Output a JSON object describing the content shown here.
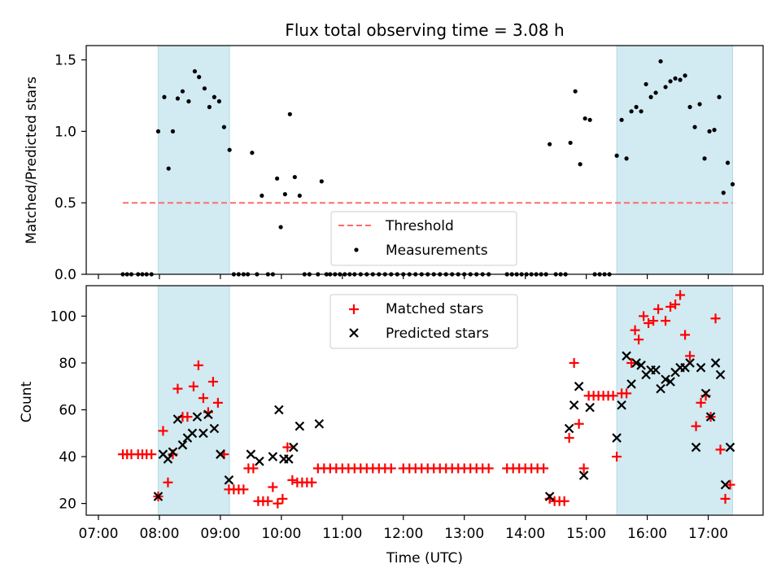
{
  "title": "Flux total observing time = 3.08 h",
  "colors": {
    "band": "#add8e6",
    "threshold": "#ff6b6b",
    "matched": "#ff0000",
    "predicted": "#000000",
    "measurement": "#000000"
  },
  "x_axis": {
    "label": "Time (UTC)",
    "range_h": [
      6.8,
      17.9
    ],
    "ticks": [
      7,
      8,
      9,
      10,
      11,
      12,
      13,
      14,
      15,
      16,
      17
    ],
    "tick_labels": [
      "07:00",
      "08:00",
      "09:00",
      "10:00",
      "11:00",
      "12:00",
      "13:00",
      "14:00",
      "15:00",
      "16:00",
      "17:00"
    ]
  },
  "observing_windows_h": [
    [
      7.98,
      9.15
    ],
    [
      15.5,
      17.4
    ]
  ],
  "top_panel": {
    "ylabel": "Matched/Predicted stars",
    "ylim": [
      0,
      1.6
    ],
    "yticks": [
      0.0,
      0.5,
      1.0,
      1.5
    ],
    "ytick_labels": [
      "0.0",
      "0.5",
      "1.0",
      "1.5"
    ],
    "threshold": {
      "value": 0.5,
      "x_range_h": [
        7.4,
        17.4
      ]
    },
    "legend": {
      "threshold": "Threshold",
      "measurements": "Measurements"
    }
  },
  "bottom_panel": {
    "ylabel": "Count",
    "ylim": [
      15,
      113
    ],
    "yticks": [
      20,
      40,
      60,
      80,
      100
    ],
    "ytick_labels": [
      "20",
      "40",
      "60",
      "80",
      "100"
    ],
    "legend": {
      "matched": "Matched stars",
      "predicted": "Predicted stars"
    }
  },
  "chart_data": {
    "type": "scatter",
    "ratio_series": {
      "name": "Measurements",
      "points": [
        [
          7.4,
          0
        ],
        [
          7.47,
          0
        ],
        [
          7.54,
          0
        ],
        [
          7.65,
          0
        ],
        [
          7.72,
          0
        ],
        [
          7.79,
          0
        ],
        [
          7.87,
          0
        ],
        [
          7.98,
          1.0
        ],
        [
          8.08,
          1.24
        ],
        [
          8.15,
          0.74
        ],
        [
          8.22,
          1.0
        ],
        [
          8.3,
          1.23
        ],
        [
          8.38,
          1.28
        ],
        [
          8.48,
          1.21
        ],
        [
          8.58,
          1.42
        ],
        [
          8.65,
          1.38
        ],
        [
          8.74,
          1.3
        ],
        [
          8.82,
          1.17
        ],
        [
          8.9,
          1.24
        ],
        [
          8.98,
          1.21
        ],
        [
          9.06,
          1.03
        ],
        [
          9.15,
          0.87
        ],
        [
          9.22,
          0
        ],
        [
          9.3,
          0
        ],
        [
          9.38,
          0
        ],
        [
          9.45,
          0
        ],
        [
          9.52,
          0.85
        ],
        [
          9.6,
          0
        ],
        [
          9.68,
          0.55
        ],
        [
          9.78,
          0
        ],
        [
          9.86,
          0
        ],
        [
          9.93,
          0.67
        ],
        [
          9.99,
          0.33
        ],
        [
          10.06,
          0.56
        ],
        [
          10.14,
          1.12
        ],
        [
          10.22,
          0.68
        ],
        [
          10.3,
          0.55
        ],
        [
          10.38,
          0
        ],
        [
          10.46,
          0
        ],
        [
          10.6,
          0
        ],
        [
          10.66,
          0.65
        ],
        [
          10.74,
          0
        ],
        [
          10.8,
          0
        ],
        [
          10.88,
          0
        ],
        [
          10.96,
          0
        ],
        [
          11.04,
          0
        ],
        [
          11.12,
          0
        ],
        [
          11.2,
          0
        ],
        [
          11.3,
          0
        ],
        [
          11.4,
          0
        ],
        [
          11.5,
          0
        ],
        [
          11.6,
          0
        ],
        [
          11.7,
          0
        ],
        [
          11.8,
          0
        ],
        [
          11.9,
          0
        ],
        [
          12.0,
          0
        ],
        [
          12.1,
          0
        ],
        [
          12.2,
          0
        ],
        [
          12.3,
          0
        ],
        [
          12.4,
          0
        ],
        [
          12.5,
          0
        ],
        [
          12.6,
          0
        ],
        [
          12.7,
          0
        ],
        [
          12.8,
          0
        ],
        [
          12.9,
          0
        ],
        [
          13.0,
          0
        ],
        [
          13.1,
          0
        ],
        [
          13.2,
          0
        ],
        [
          13.3,
          0
        ],
        [
          13.4,
          0
        ],
        [
          13.7,
          0
        ],
        [
          13.78,
          0
        ],
        [
          13.86,
          0
        ],
        [
          13.94,
          0
        ],
        [
          14.02,
          0
        ],
        [
          14.1,
          0
        ],
        [
          14.18,
          0
        ],
        [
          14.26,
          0
        ],
        [
          14.34,
          0
        ],
        [
          14.4,
          0.91
        ],
        [
          14.5,
          0
        ],
        [
          14.58,
          0
        ],
        [
          14.66,
          0
        ],
        [
          14.74,
          0.92
        ],
        [
          14.82,
          1.28
        ],
        [
          14.9,
          0.77
        ],
        [
          14.98,
          1.09
        ],
        [
          15.06,
          1.08
        ],
        [
          15.14,
          0
        ],
        [
          15.22,
          0
        ],
        [
          15.3,
          0
        ],
        [
          15.38,
          0
        ],
        [
          15.5,
          0.83
        ],
        [
          15.58,
          1.08
        ],
        [
          15.66,
          0.81
        ],
        [
          15.74,
          1.14
        ],
        [
          15.82,
          1.17
        ],
        [
          15.9,
          1.14
        ],
        [
          15.98,
          1.33
        ],
        [
          16.06,
          1.24
        ],
        [
          16.14,
          1.27
        ],
        [
          16.22,
          1.49
        ],
        [
          16.3,
          1.31
        ],
        [
          16.38,
          1.35
        ],
        [
          16.46,
          1.37
        ],
        [
          16.54,
          1.36
        ],
        [
          16.62,
          1.39
        ],
        [
          16.7,
          1.17
        ],
        [
          16.78,
          1.03
        ],
        [
          16.86,
          1.19
        ],
        [
          16.94,
          0.81
        ],
        [
          17.02,
          1.0
        ],
        [
          17.1,
          1.01
        ],
        [
          17.18,
          1.24
        ],
        [
          17.25,
          0.57
        ],
        [
          17.32,
          0.78
        ],
        [
          17.4,
          0.63
        ]
      ]
    },
    "matched_series": {
      "name": "Matched stars",
      "points": [
        [
          7.4,
          41
        ],
        [
          7.47,
          41
        ],
        [
          7.54,
          41
        ],
        [
          7.65,
          41
        ],
        [
          7.72,
          41
        ],
        [
          7.79,
          41
        ],
        [
          7.87,
          41
        ],
        [
          7.98,
          23
        ],
        [
          8.06,
          51
        ],
        [
          8.14,
          29
        ],
        [
          8.22,
          41
        ],
        [
          8.3,
          69
        ],
        [
          8.38,
          57
        ],
        [
          8.46,
          57
        ],
        [
          8.56,
          70
        ],
        [
          8.64,
          79
        ],
        [
          8.72,
          65
        ],
        [
          8.8,
          59
        ],
        [
          8.88,
          72
        ],
        [
          8.96,
          63
        ],
        [
          9.06,
          41
        ],
        [
          9.14,
          26
        ],
        [
          9.22,
          26
        ],
        [
          9.3,
          26
        ],
        [
          9.38,
          26
        ],
        [
          9.46,
          35
        ],
        [
          9.54,
          35
        ],
        [
          9.62,
          21
        ],
        [
          9.7,
          21
        ],
        [
          9.78,
          21
        ],
        [
          9.86,
          27
        ],
        [
          9.94,
          20
        ],
        [
          10.02,
          22
        ],
        [
          10.1,
          44
        ],
        [
          10.18,
          30
        ],
        [
          10.26,
          29
        ],
        [
          10.34,
          29
        ],
        [
          10.42,
          29
        ],
        [
          10.5,
          29
        ],
        [
          10.6,
          35
        ],
        [
          10.7,
          35
        ],
        [
          10.8,
          35
        ],
        [
          10.9,
          35
        ],
        [
          11.0,
          35
        ],
        [
          11.1,
          35
        ],
        [
          11.2,
          35
        ],
        [
          11.3,
          35
        ],
        [
          11.4,
          35
        ],
        [
          11.5,
          35
        ],
        [
          11.6,
          35
        ],
        [
          11.7,
          35
        ],
        [
          11.8,
          35
        ],
        [
          12.0,
          35
        ],
        [
          12.1,
          35
        ],
        [
          12.2,
          35
        ],
        [
          12.3,
          35
        ],
        [
          12.4,
          35
        ],
        [
          12.5,
          35
        ],
        [
          12.6,
          35
        ],
        [
          12.7,
          35
        ],
        [
          12.8,
          35
        ],
        [
          12.9,
          35
        ],
        [
          13.0,
          35
        ],
        [
          13.1,
          35
        ],
        [
          13.2,
          35
        ],
        [
          13.3,
          35
        ],
        [
          13.4,
          35
        ],
        [
          13.7,
          35
        ],
        [
          13.8,
          35
        ],
        [
          13.9,
          35
        ],
        [
          14.0,
          35
        ],
        [
          14.1,
          35
        ],
        [
          14.2,
          35
        ],
        [
          14.3,
          35
        ],
        [
          14.4,
          22
        ],
        [
          14.48,
          21
        ],
        [
          14.56,
          21
        ],
        [
          14.64,
          21
        ],
        [
          14.72,
          48
        ],
        [
          14.8,
          80
        ],
        [
          14.88,
          54
        ],
        [
          14.96,
          35
        ],
        [
          15.04,
          66
        ],
        [
          15.12,
          66
        ],
        [
          15.2,
          66
        ],
        [
          15.28,
          66
        ],
        [
          15.36,
          66
        ],
        [
          15.44,
          66
        ],
        [
          15.5,
          40
        ],
        [
          15.58,
          67
        ],
        [
          15.66,
          67
        ],
        [
          15.74,
          80
        ],
        [
          15.8,
          94
        ],
        [
          15.86,
          90
        ],
        [
          15.94,
          100
        ],
        [
          16.02,
          97
        ],
        [
          16.1,
          98
        ],
        [
          16.18,
          103
        ],
        [
          16.3,
          98
        ],
        [
          16.38,
          104
        ],
        [
          16.46,
          105
        ],
        [
          16.54,
          109
        ],
        [
          16.62,
          92
        ],
        [
          16.7,
          83
        ],
        [
          16.8,
          53
        ],
        [
          16.88,
          63
        ],
        [
          16.96,
          66
        ],
        [
          17.04,
          57
        ],
        [
          17.12,
          99
        ],
        [
          17.2,
          43
        ],
        [
          17.28,
          22
        ],
        [
          17.36,
          28
        ]
      ]
    },
    "predicted_series": {
      "name": "Predicted stars",
      "points": [
        [
          7.98,
          23
        ],
        [
          8.06,
          41
        ],
        [
          8.14,
          39
        ],
        [
          8.22,
          42
        ],
        [
          8.3,
          56
        ],
        [
          8.38,
          45
        ],
        [
          8.46,
          48
        ],
        [
          8.54,
          50
        ],
        [
          8.62,
          57
        ],
        [
          8.72,
          50
        ],
        [
          8.8,
          58
        ],
        [
          8.9,
          52
        ],
        [
          9.0,
          41
        ],
        [
          9.14,
          30
        ],
        [
          9.5,
          41
        ],
        [
          9.64,
          38
        ],
        [
          9.86,
          40
        ],
        [
          9.96,
          60
        ],
        [
          10.04,
          39
        ],
        [
          10.12,
          39
        ],
        [
          10.2,
          44
        ],
        [
          10.3,
          53
        ],
        [
          10.62,
          54
        ],
        [
          14.4,
          23
        ],
        [
          14.72,
          52
        ],
        [
          14.8,
          62
        ],
        [
          14.88,
          70
        ],
        [
          14.96,
          32
        ],
        [
          15.06,
          61
        ],
        [
          15.5,
          48
        ],
        [
          15.58,
          62
        ],
        [
          15.66,
          83
        ],
        [
          15.74,
          71
        ],
        [
          15.82,
          80
        ],
        [
          15.9,
          79
        ],
        [
          15.98,
          75
        ],
        [
          16.06,
          77
        ],
        [
          16.14,
          77
        ],
        [
          16.22,
          69
        ],
        [
          16.3,
          73
        ],
        [
          16.38,
          72
        ],
        [
          16.46,
          76
        ],
        [
          16.54,
          78
        ],
        [
          16.62,
          78
        ],
        [
          16.7,
          80
        ],
        [
          16.8,
          44
        ],
        [
          16.88,
          78
        ],
        [
          16.96,
          67
        ],
        [
          17.04,
          57
        ],
        [
          17.12,
          80
        ],
        [
          17.2,
          75
        ],
        [
          17.28,
          28
        ],
        [
          17.36,
          44
        ]
      ]
    }
  }
}
